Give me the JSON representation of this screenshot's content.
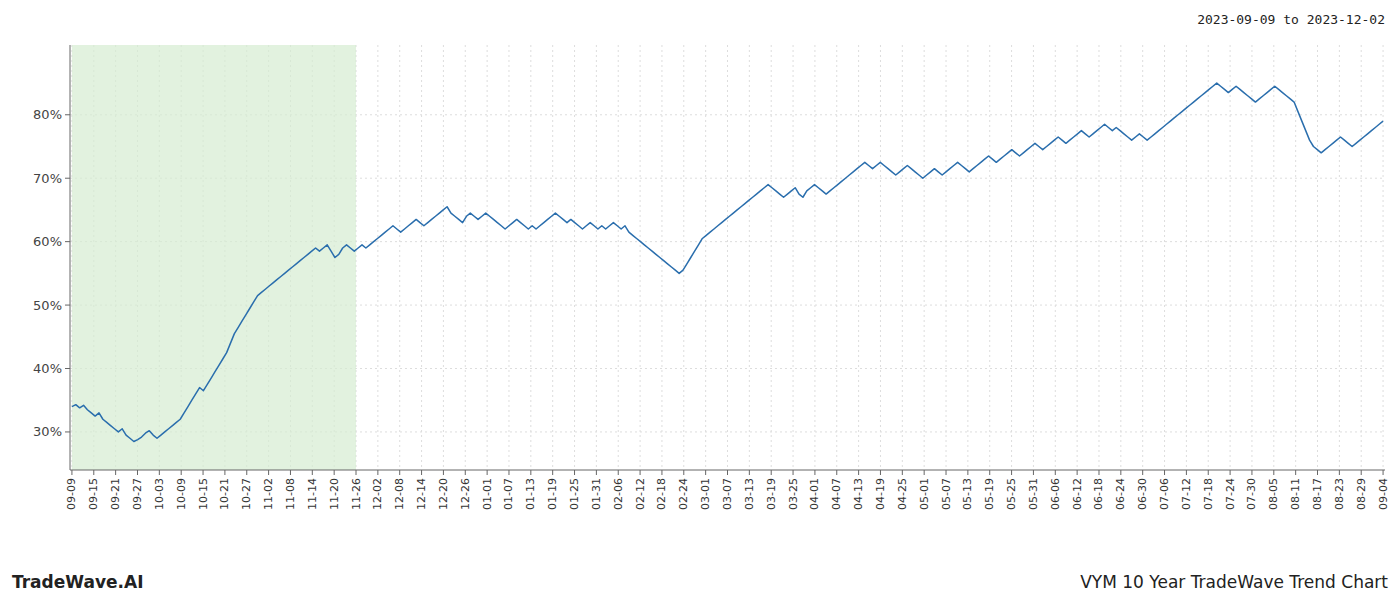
{
  "chart_data": {
    "type": "line",
    "title": "VYM 10 Year TradeWave Trend Chart",
    "subtitle": "2023-09-09 to 2023-12-02",
    "annotations": [
      "TradeWave.AI"
    ],
    "color": "#2a6ead",
    "grid": true,
    "xlim": [
      -0.5,
      339.5
    ],
    "ylim": [
      24,
      91
    ],
    "yticks": [
      {
        "value": 30,
        "label": "30%"
      },
      {
        "value": 40,
        "label": "40%"
      },
      {
        "value": 50,
        "label": "50%"
      },
      {
        "value": 60,
        "label": "60%"
      },
      {
        "value": 70,
        "label": "70%"
      },
      {
        "value": 80,
        "label": "80%"
      }
    ],
    "xticks": [
      {
        "value": 0,
        "label": "09-09"
      },
      {
        "value": 5.65,
        "label": "09-15"
      },
      {
        "value": 11.3,
        "label": "09-21"
      },
      {
        "value": 16.95,
        "label": "09-27"
      },
      {
        "value": 22.6,
        "label": "10-03"
      },
      {
        "value": 28.25,
        "label": "10-09"
      },
      {
        "value": 33.9,
        "label": "10-15"
      },
      {
        "value": 39.55,
        "label": "10-21"
      },
      {
        "value": 45.2,
        "label": "10-27"
      },
      {
        "value": 50.85,
        "label": "11-02"
      },
      {
        "value": 56.5,
        "label": "11-08"
      },
      {
        "value": 62.15,
        "label": "11-14"
      },
      {
        "value": 67.8,
        "label": "11-20"
      },
      {
        "value": 73.45,
        "label": "11-26"
      },
      {
        "value": 79.1,
        "label": "12-02"
      },
      {
        "value": 84.75,
        "label": "12-08"
      },
      {
        "value": 90.4,
        "label": "12-14"
      },
      {
        "value": 96.05,
        "label": "12-20"
      },
      {
        "value": 101.7,
        "label": "12-26"
      },
      {
        "value": 107.35,
        "label": "01-01"
      },
      {
        "value": 113,
        "label": "01-07"
      },
      {
        "value": 118.65,
        "label": "01-13"
      },
      {
        "value": 124.3,
        "label": "01-19"
      },
      {
        "value": 129.95,
        "label": "01-25"
      },
      {
        "value": 135.6,
        "label": "01-31"
      },
      {
        "value": 141.25,
        "label": "02-06"
      },
      {
        "value": 146.9,
        "label": "02-12"
      },
      {
        "value": 152.55,
        "label": "02-18"
      },
      {
        "value": 158.2,
        "label": "02-24"
      },
      {
        "value": 163.85,
        "label": "03-01"
      },
      {
        "value": 169.5,
        "label": "03-07"
      },
      {
        "value": 175.15,
        "label": "03-13"
      },
      {
        "value": 180.8,
        "label": "03-19"
      },
      {
        "value": 186.45,
        "label": "03-25"
      },
      {
        "value": 192.1,
        "label": "04-01"
      },
      {
        "value": 197.75,
        "label": "04-07"
      },
      {
        "value": 203.4,
        "label": "04-13"
      },
      {
        "value": 209.05,
        "label": "04-19"
      },
      {
        "value": 214.7,
        "label": "04-25"
      },
      {
        "value": 220.35,
        "label": "05-01"
      },
      {
        "value": 226,
        "label": "05-07"
      },
      {
        "value": 231.65,
        "label": "05-13"
      },
      {
        "value": 237.3,
        "label": "05-19"
      },
      {
        "value": 242.95,
        "label": "05-25"
      },
      {
        "value": 248.6,
        "label": "05-31"
      },
      {
        "value": 254.25,
        "label": "06-06"
      },
      {
        "value": 259.9,
        "label": "06-12"
      },
      {
        "value": 265.55,
        "label": "06-18"
      },
      {
        "value": 271.2,
        "label": "06-24"
      },
      {
        "value": 276.85,
        "label": "06-30"
      },
      {
        "value": 282.5,
        "label": "07-06"
      },
      {
        "value": 288.15,
        "label": "07-12"
      },
      {
        "value": 293.8,
        "label": "07-18"
      },
      {
        "value": 299.45,
        "label": "07-24"
      },
      {
        "value": 305.1,
        "label": "07-30"
      },
      {
        "value": 310.75,
        "label": "08-05"
      },
      {
        "value": 316.4,
        "label": "08-11"
      },
      {
        "value": 322.05,
        "label": "08-17"
      },
      {
        "value": 327.7,
        "label": "08-23"
      },
      {
        "value": 333.35,
        "label": "08-29"
      },
      {
        "value": 339,
        "label": "09-04"
      }
    ],
    "span": {
      "x": [
        0,
        73.45
      ],
      "color": "#d6ecd2"
    },
    "x": [
      0,
      1,
      2,
      3,
      4,
      5,
      6,
      7,
      8,
      9,
      10,
      11,
      12,
      13,
      14,
      15,
      16,
      17,
      18,
      19,
      20,
      21,
      22,
      23,
      24,
      25,
      26,
      27,
      28,
      29,
      30,
      31,
      32,
      33,
      34,
      35,
      36,
      37,
      38,
      39,
      40,
      41,
      42,
      43,
      44,
      45,
      46,
      47,
      48,
      49,
      50,
      51,
      52,
      53,
      54,
      55,
      56,
      57,
      58,
      59,
      60,
      61,
      62,
      63,
      64,
      65,
      66,
      67,
      68,
      69,
      70,
      71,
      72,
      73,
      74,
      75,
      76,
      77,
      78,
      79,
      80,
      81,
      82,
      83,
      84,
      85,
      86,
      87,
      88,
      89,
      90,
      91,
      92,
      93,
      94,
      95,
      96,
      97,
      98,
      99,
      100,
      101,
      102,
      103,
      104,
      105,
      106,
      107,
      108,
      109,
      110,
      111,
      112,
      113,
      114,
      115,
      116,
      117,
      118,
      119,
      120,
      121,
      122,
      123,
      124,
      125,
      126,
      127,
      128,
      129,
      130,
      131,
      132,
      133,
      134,
      135,
      136,
      137,
      138,
      139,
      140,
      141,
      142,
      143,
      144,
      145,
      146,
      147,
      148,
      149,
      150,
      151,
      152,
      153,
      154,
      155,
      156,
      157,
      158,
      159,
      160,
      161,
      162,
      163,
      164,
      165,
      166,
      167,
      168,
      169,
      170,
      171,
      172,
      173,
      174,
      175,
      176,
      177,
      178,
      179,
      180,
      181,
      182,
      183,
      184,
      185,
      186,
      187,
      188,
      189,
      190,
      191,
      192,
      193,
      194,
      195,
      196,
      197,
      198,
      199,
      200,
      201,
      202,
      203,
      204,
      205,
      206,
      207,
      208,
      209,
      210,
      211,
      212,
      213,
      214,
      215,
      216,
      217,
      218,
      219,
      220,
      221,
      222,
      223,
      224,
      225,
      226,
      227,
      228,
      229,
      230,
      231,
      232,
      233,
      234,
      235,
      236,
      237,
      238,
      239,
      240,
      241,
      242,
      243,
      244,
      245,
      246,
      247,
      248,
      249,
      250,
      251,
      252,
      253,
      254,
      255,
      256,
      257,
      258,
      259,
      260,
      261,
      262,
      263,
      264,
      265,
      266,
      267,
      268,
      269,
      270,
      271,
      272,
      273,
      274,
      275,
      276,
      277,
      278,
      279,
      280,
      281,
      282,
      283,
      284,
      285,
      286,
      287,
      288,
      289,
      290,
      291,
      292,
      293,
      294,
      295,
      296,
      297,
      298,
      299,
      300,
      301,
      302,
      303,
      304,
      305,
      306,
      307,
      308,
      309,
      310,
      311,
      312,
      313,
      314,
      315,
      316,
      317,
      318,
      319,
      320,
      321,
      322,
      323,
      324,
      325,
      326,
      327,
      328,
      329,
      330,
      331,
      332,
      333,
      334,
      335,
      336,
      337,
      338,
      339
    ],
    "values": [
      34.0,
      34.3,
      33.8,
      34.2,
      33.5,
      33.0,
      32.5,
      33.0,
      32.0,
      31.5,
      31.0,
      30.5,
      30.0,
      30.5,
      29.5,
      29.0,
      28.5,
      28.8,
      29.2,
      29.8,
      30.2,
      29.5,
      29.0,
      29.5,
      30.0,
      30.5,
      31.0,
      31.5,
      32.0,
      33.0,
      34.0,
      35.0,
      36.0,
      37.0,
      36.5,
      37.5,
      38.5,
      39.5,
      40.5,
      41.5,
      42.5,
      44.0,
      45.5,
      46.5,
      47.5,
      48.5,
      49.5,
      50.5,
      51.5,
      52.0,
      52.5,
      53.0,
      53.5,
      54.0,
      54.5,
      55.0,
      55.5,
      56.0,
      56.5,
      57.0,
      57.5,
      58.0,
      58.5,
      59.0,
      58.5,
      59.0,
      59.5,
      58.5,
      57.5,
      58.0,
      59.0,
      59.5,
      59.0,
      58.5,
      59.0,
      59.5,
      59.0,
      59.5,
      60.0,
      60.5,
      61.0,
      61.5,
      62.0,
      62.5,
      62.0,
      61.5,
      62.0,
      62.5,
      63.0,
      63.5,
      63.0,
      62.5,
      63.0,
      63.5,
      64.0,
      64.5,
      65.0,
      65.5,
      64.5,
      64.0,
      63.5,
      63.0,
      64.0,
      64.5,
      64.0,
      63.5,
      64.0,
      64.5,
      64.0,
      63.5,
      63.0,
      62.5,
      62.0,
      62.5,
      63.0,
      63.5,
      63.0,
      62.5,
      62.0,
      62.5,
      62.0,
      62.5,
      63.0,
      63.5,
      64.0,
      64.5,
      64.0,
      63.5,
      63.0,
      63.5,
      63.0,
      62.5,
      62.0,
      62.5,
      63.0,
      62.5,
      62.0,
      62.5,
      62.0,
      62.5,
      63.0,
      62.5,
      62.0,
      62.5,
      61.5,
      61.0,
      60.5,
      60.0,
      59.5,
      59.0,
      58.5,
      58.0,
      57.5,
      57.0,
      56.5,
      56.0,
      55.5,
      55.0,
      55.5,
      56.5,
      57.5,
      58.5,
      59.5,
      60.5,
      61.0,
      61.5,
      62.0,
      62.5,
      63.0,
      63.5,
      64.0,
      64.5,
      65.0,
      65.5,
      66.0,
      66.5,
      67.0,
      67.5,
      68.0,
      68.5,
      69.0,
      68.5,
      68.0,
      67.5,
      67.0,
      67.5,
      68.0,
      68.5,
      67.5,
      67.0,
      68.0,
      68.5,
      69.0,
      68.5,
      68.0,
      67.5,
      68.0,
      68.5,
      69.0,
      69.5,
      70.0,
      70.5,
      71.0,
      71.5,
      72.0,
      72.5,
      72.0,
      71.5,
      72.0,
      72.5,
      72.0,
      71.5,
      71.0,
      70.5,
      71.0,
      71.5,
      72.0,
      71.5,
      71.0,
      70.5,
      70.0,
      70.5,
      71.0,
      71.5,
      71.0,
      70.5,
      71.0,
      71.5,
      72.0,
      72.5,
      72.0,
      71.5,
      71.0,
      71.5,
      72.0,
      72.5,
      73.0,
      73.5,
      73.0,
      72.5,
      73.0,
      73.5,
      74.0,
      74.5,
      74.0,
      73.5,
      74.0,
      74.5,
      75.0,
      75.5,
      75.0,
      74.5,
      75.0,
      75.5,
      76.0,
      76.5,
      76.0,
      75.5,
      76.0,
      76.5,
      77.0,
      77.5,
      77.0,
      76.5,
      77.0,
      77.5,
      78.0,
      78.5,
      78.0,
      77.5,
      78.0,
      77.5,
      77.0,
      76.5,
      76.0,
      76.5,
      77.0,
      76.5,
      76.0,
      76.5,
      77.0,
      77.5,
      78.0,
      78.5,
      79.0,
      79.5,
      80.0,
      80.5,
      81.0,
      81.5,
      82.0,
      82.5,
      83.0,
      83.5,
      84.0,
      84.5,
      85.0,
      84.5,
      84.0,
      83.5,
      84.0,
      84.5,
      84.0,
      83.5,
      83.0,
      82.5,
      82.0,
      82.5,
      83.0,
      83.5,
      84.0,
      84.5,
      84.0,
      83.5,
      83.0,
      82.5,
      82.0,
      80.5,
      79.0,
      77.5,
      76.0,
      75.0,
      74.5,
      74.0,
      74.5,
      75.0,
      75.5,
      76.0,
      76.5,
      76.0,
      75.5,
      75.0,
      75.5,
      76.0,
      76.5,
      77.0,
      77.5,
      78.0,
      78.5,
      79.0
    ]
  }
}
